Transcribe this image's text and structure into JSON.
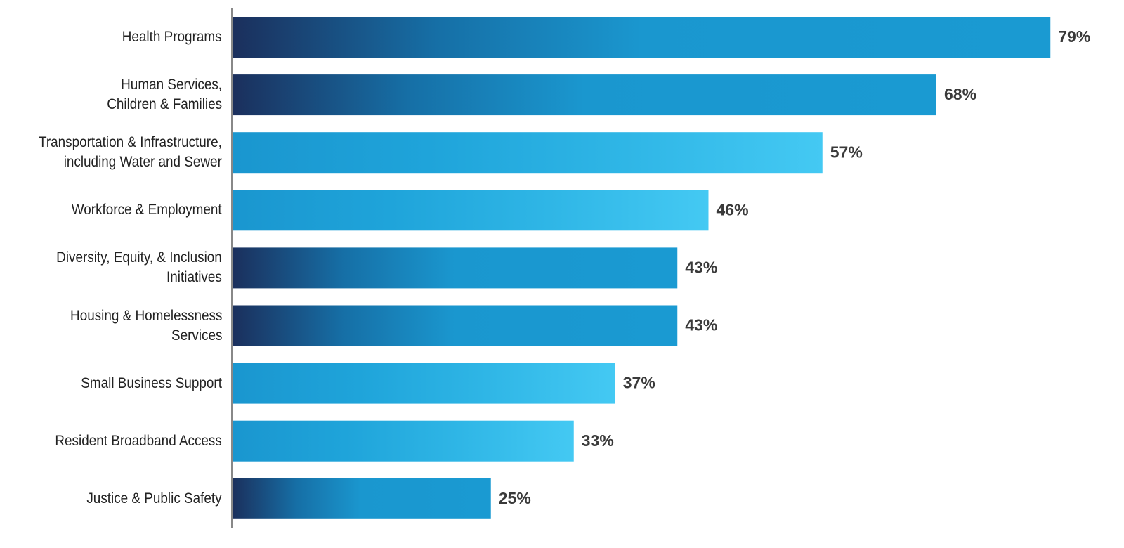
{
  "chart_data": {
    "type": "bar",
    "orientation": "horizontal",
    "categories": [
      "Health Programs",
      "Human Services,\nChildren & Families",
      "Transportation & Infrastructure,\nincluding Water and Sewer",
      "Workforce & Employment",
      "Diversity, Equity, & Inclusion\nInitiatives",
      "Housing & Homelessness\nServices",
      "Small Business Support",
      "Resident Broadband Access",
      "Justice & Public Safety"
    ],
    "values": [
      79,
      68,
      57,
      46,
      43,
      43,
      37,
      33,
      25
    ],
    "value_labels": [
      "79%",
      "68%",
      "57%",
      "46%",
      "43%",
      "43%",
      "37%",
      "33%",
      "25%"
    ],
    "gradients": {
      "dark": [
        "#1b2f5c",
        "#166fa6",
        "#1a97cf",
        "#1a9ad2"
      ],
      "light": [
        "#1a96cf",
        "#1fa4da",
        "#2fb6e6",
        "#44c9f3"
      ]
    },
    "bar_gradient": [
      "dark",
      "dark",
      "light",
      "light",
      "dark",
      "dark",
      "light",
      "light",
      "dark"
    ]
  }
}
